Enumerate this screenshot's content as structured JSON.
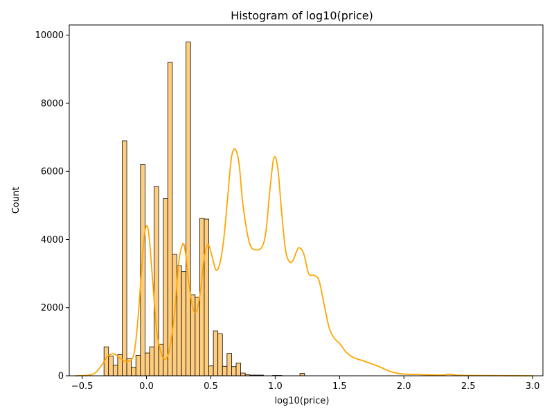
{
  "chart_data": {
    "type": "bar",
    "title": "Histogram of log10(price)",
    "xlabel": "log10(price)",
    "ylabel": "Count",
    "xlim": [
      -0.6,
      3.08
    ],
    "ylim": [
      0,
      10300
    ],
    "xticks": [
      -0.5,
      0.0,
      0.5,
      1.0,
      1.5,
      2.0,
      2.5,
      3.0
    ],
    "xtick_labels": [
      "−0.5",
      "0.0",
      "0.5",
      "1.0",
      "1.5",
      "2.0",
      "2.5",
      "3.0"
    ],
    "yticks": [
      0,
      2000,
      4000,
      6000,
      8000,
      10000
    ],
    "ytick_labels": [
      "0",
      "2000",
      "4000",
      "6000",
      "8000",
      "10000"
    ],
    "grid": false,
    "bar_fill": "#ffcd7f",
    "bar_edge": "#000000",
    "kde_color": "#ffa500",
    "bin_start": -0.33,
    "bin_width": 0.0354,
    "values": [
      850,
      580,
      310,
      620,
      6900,
      500,
      250,
      600,
      6200,
      670,
      850,
      5560,
      930,
      5200,
      9200,
      3570,
      3230,
      3060,
      9800,
      2380,
      2310,
      4620,
      4600,
      290,
      1320,
      1230,
      280,
      660,
      270,
      370,
      80,
      30,
      20,
      20,
      20,
      0,
      0,
      10,
      10,
      0,
      0,
      0,
      0,
      70,
      0,
      0,
      0,
      0,
      0,
      0,
      0,
      0,
      0,
      0,
      0,
      0,
      0,
      0,
      0,
      0,
      0,
      0,
      0,
      0,
      0,
      0,
      0,
      0,
      0,
      0,
      0,
      0,
      0,
      0,
      0,
      0,
      0,
      0,
      0,
      0,
      0,
      0,
      0,
      0,
      0,
      0,
      0,
      0,
      0,
      0
    ],
    "kde": {
      "x": [
        -0.55,
        -0.45,
        -0.4,
        -0.35,
        -0.3,
        -0.25,
        -0.2,
        -0.15,
        -0.1,
        -0.07,
        -0.04,
        -0.02,
        0.0,
        0.02,
        0.05,
        0.08,
        0.12,
        0.15,
        0.18,
        0.22,
        0.25,
        0.28,
        0.3,
        0.33,
        0.36,
        0.39,
        0.42,
        0.45,
        0.48,
        0.51,
        0.54,
        0.57,
        0.6,
        0.63,
        0.66,
        0.69,
        0.72,
        0.75,
        0.8,
        0.85,
        0.9,
        0.93,
        0.96,
        0.99,
        1.02,
        1.05,
        1.08,
        1.11,
        1.14,
        1.18,
        1.22,
        1.26,
        1.3,
        1.34,
        1.38,
        1.42,
        1.46,
        1.5,
        1.55,
        1.6,
        1.65,
        1.7,
        1.75,
        1.8,
        1.9,
        2.0,
        2.1,
        2.2,
        2.3,
        2.35,
        2.4,
        2.5,
        2.7,
        3.0
      ],
      "y": [
        0,
        20,
        80,
        300,
        580,
        640,
        500,
        420,
        600,
        1500,
        3000,
        4000,
        4400,
        4100,
        2700,
        1300,
        600,
        500,
        800,
        1900,
        3300,
        3850,
        3700,
        2700,
        2000,
        1900,
        2500,
        3500,
        3850,
        3500,
        3100,
        3300,
        4000,
        5200,
        6400,
        6650,
        6200,
        5000,
        3900,
        3700,
        3800,
        4300,
        5500,
        6400,
        6100,
        4800,
        3700,
        3350,
        3400,
        3750,
        3600,
        3000,
        2950,
        2800,
        2100,
        1400,
        1100,
        950,
        700,
        550,
        480,
        420,
        350,
        280,
        120,
        50,
        40,
        25,
        20,
        45,
        20,
        10,
        5,
        0
      ]
    }
  }
}
